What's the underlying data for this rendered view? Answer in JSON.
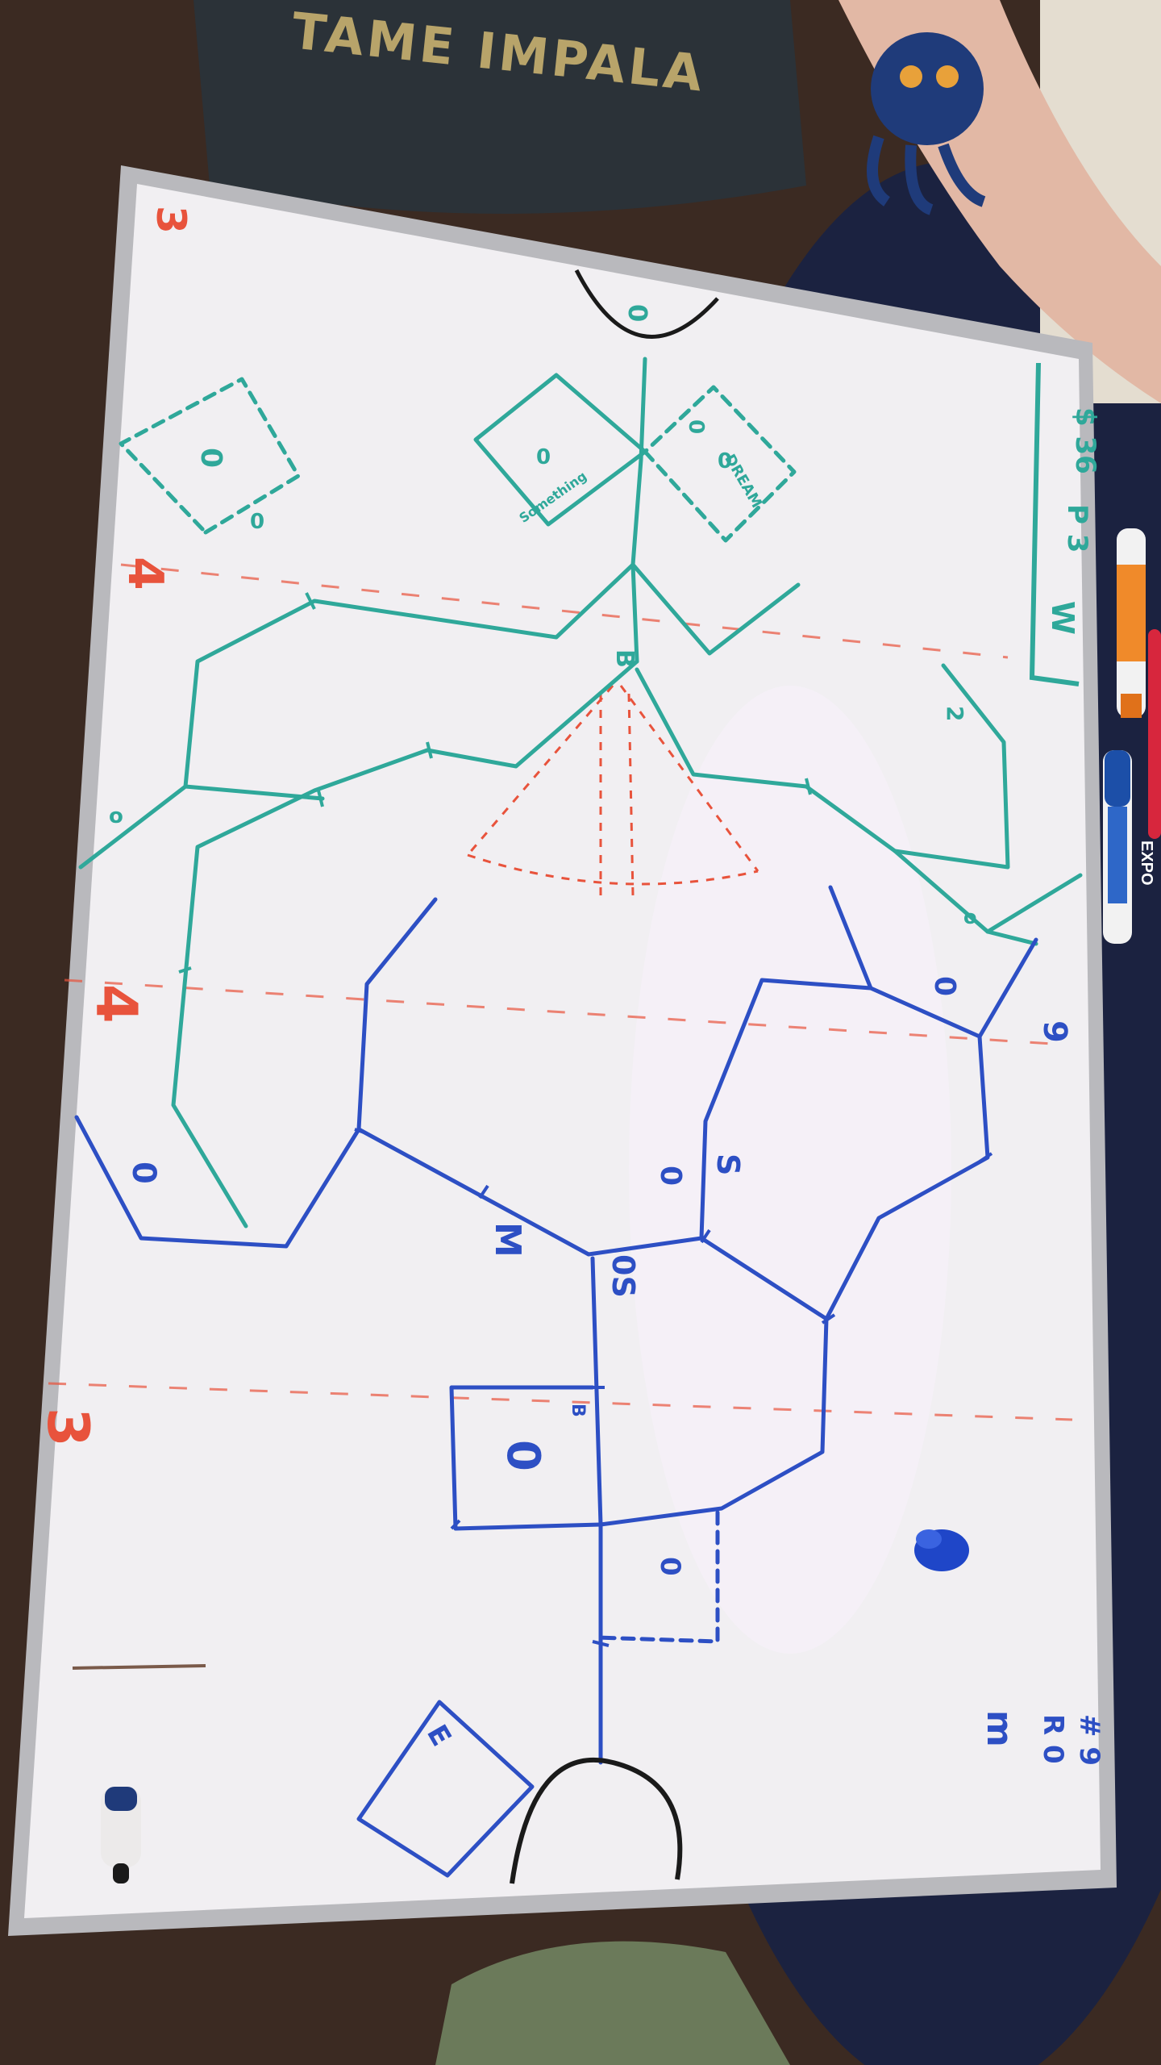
{
  "colors": {
    "floor": "#3b2a22",
    "table": "#1b2240",
    "board_frame": "#b9b9bd",
    "board_surface": "#f1eff2",
    "teal_marker": "#2fa89a",
    "blue_marker": "#2d4fc4",
    "red_marker": "#e8533c",
    "black_marker": "#1a1a1a",
    "shirt": "#2b3238",
    "shirt_print": "#b8a46a"
  },
  "shirt": {
    "print_text": "TAME IMPALA"
  },
  "board": {
    "red_labels": [
      "3",
      "4",
      "4",
      "3"
    ],
    "top_end_marker": "0",
    "legend": {
      "lines": [
        "$ 36",
        "P 3",
        "W"
      ]
    },
    "corner_note": {
      "lines": [
        "# 9",
        "R 0",
        "m"
      ]
    },
    "teal_room_labels": [
      "0",
      "0",
      "B",
      "o",
      "2",
      "0",
      "0",
      "0",
      "o"
    ],
    "teal_box_labels": [
      "Something",
      "DREAM"
    ],
    "blue_room_labels": [
      "0",
      "0",
      "M",
      "0",
      "S",
      "0S",
      "B",
      "0",
      "0",
      "E"
    ],
    "blue_side_mark": "9"
  },
  "props": {
    "marker_icons": [
      "orange-marker-icon",
      "red-marker-icon",
      "blue-expo-marker-icon",
      "black-marker-icon",
      "marker-cap-icon"
    ],
    "expo_label": "EXPO"
  }
}
